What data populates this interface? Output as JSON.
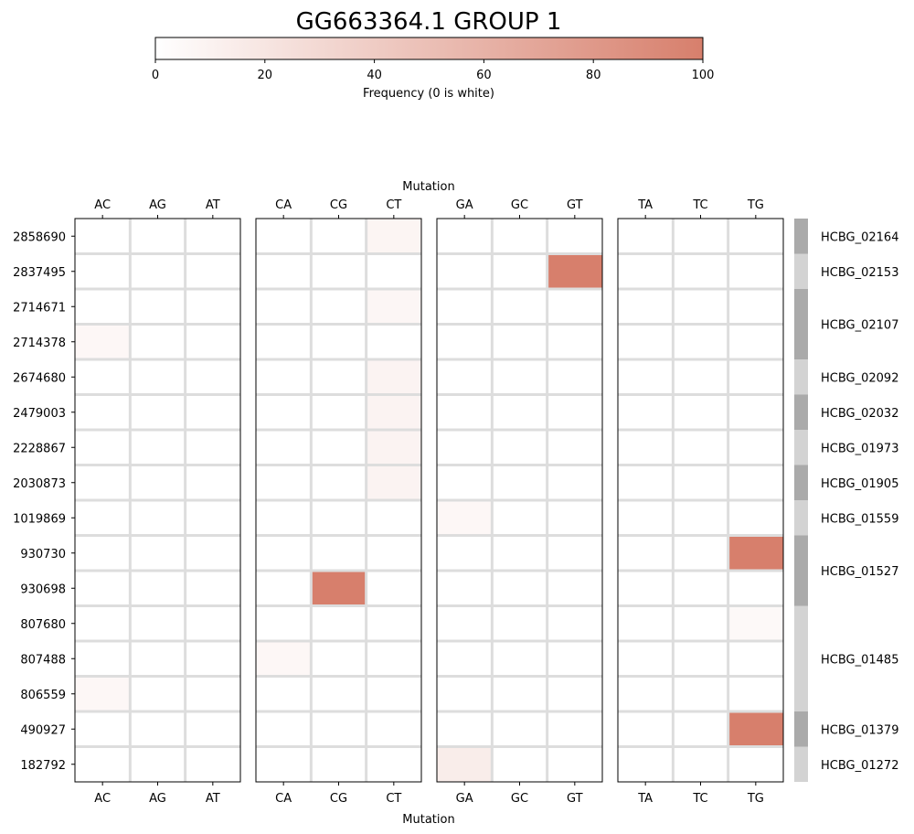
{
  "chart_data": {
    "type": "heatmap",
    "title": "GG663364.1 GROUP 1",
    "colorbar": {
      "label": "Frequency (0 is white)",
      "min": 0,
      "max": 100,
      "ticks": [
        "0",
        "20",
        "40",
        "60",
        "80",
        "100"
      ],
      "color_low": "#ffffff",
      "color_high": "#d77f6c"
    },
    "xlabel": "Mutation",
    "groups": [
      [
        "AC",
        "AG",
        "AT"
      ],
      [
        "CA",
        "CG",
        "CT"
      ],
      [
        "GA",
        "GC",
        "GT"
      ],
      [
        "TA",
        "TC",
        "TG"
      ]
    ],
    "positions": [
      "2858690",
      "2837495",
      "2714671",
      "2714378",
      "2674680",
      "2479003",
      "2228867",
      "2030873",
      "1019869",
      "930730",
      "930698",
      "807680",
      "807488",
      "806559",
      "490927",
      "182792"
    ],
    "cells": [
      {
        "position": "2858690",
        "mutation": "CT",
        "value": 8
      },
      {
        "position": "2837495",
        "mutation": "GT",
        "value": 100
      },
      {
        "position": "2714671",
        "mutation": "CT",
        "value": 7
      },
      {
        "position": "2714378",
        "mutation": "AC",
        "value": 6
      },
      {
        "position": "2674680",
        "mutation": "CT",
        "value": 9
      },
      {
        "position": "2479003",
        "mutation": "CT",
        "value": 9
      },
      {
        "position": "2228867",
        "mutation": "CT",
        "value": 9
      },
      {
        "position": "2030873",
        "mutation": "CT",
        "value": 9
      },
      {
        "position": "1019869",
        "mutation": "GA",
        "value": 6
      },
      {
        "position": "930730",
        "mutation": "TG",
        "value": 100
      },
      {
        "position": "930698",
        "mutation": "CG",
        "value": 100
      },
      {
        "position": "807680",
        "mutation": "TG",
        "value": 5
      },
      {
        "position": "807488",
        "mutation": "CA",
        "value": 6
      },
      {
        "position": "806559",
        "mutation": "AC",
        "value": 6
      },
      {
        "position": "490927",
        "mutation": "TG",
        "value": 100
      },
      {
        "position": "182792",
        "mutation": "GA",
        "value": 14
      }
    ],
    "genes": [
      {
        "label": "HCBG_02164",
        "start_row": 0,
        "rows": 1,
        "color": "#aaaaaa"
      },
      {
        "label": "HCBG_02153",
        "start_row": 1,
        "rows": 1,
        "color": "#d3d3d3"
      },
      {
        "label": "HCBG_02107",
        "start_row": 2,
        "rows": 2,
        "color": "#aaaaaa"
      },
      {
        "label": "HCBG_02092",
        "start_row": 4,
        "rows": 1,
        "color": "#d3d3d3"
      },
      {
        "label": "HCBG_02032",
        "start_row": 5,
        "rows": 1,
        "color": "#aaaaaa"
      },
      {
        "label": "HCBG_01973",
        "start_row": 6,
        "rows": 1,
        "color": "#d3d3d3"
      },
      {
        "label": "HCBG_01905",
        "start_row": 7,
        "rows": 1,
        "color": "#aaaaaa"
      },
      {
        "label": "HCBG_01559",
        "start_row": 8,
        "rows": 1,
        "color": "#d3d3d3"
      },
      {
        "label": "HCBG_01527",
        "start_row": 9,
        "rows": 2,
        "color": "#aaaaaa"
      },
      {
        "label": "HCBG_01485",
        "start_row": 11,
        "rows": 3,
        "color": "#d3d3d3"
      },
      {
        "label": "HCBG_01379",
        "start_row": 14,
        "rows": 1,
        "color": "#aaaaaa"
      },
      {
        "label": "HCBG_01272",
        "start_row": 15,
        "rows": 1,
        "color": "#d3d3d3"
      }
    ],
    "grid": true,
    "grid_color": "#dddddd"
  }
}
